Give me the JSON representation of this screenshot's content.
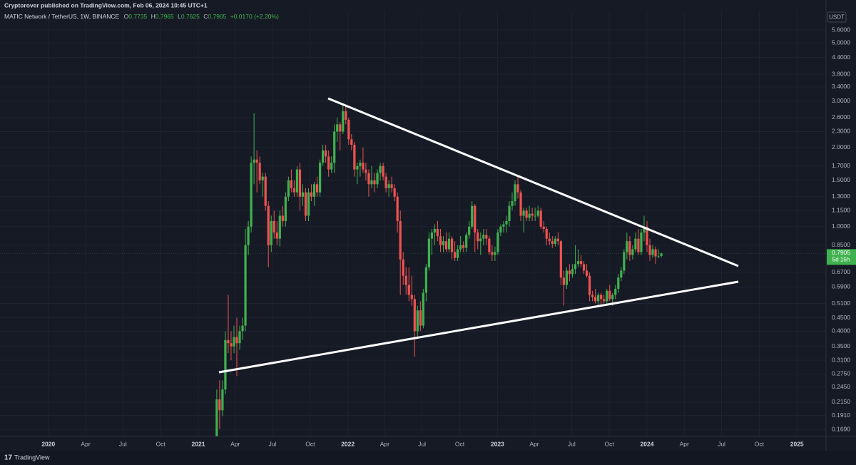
{
  "header": {
    "publisher": "Cryptorover published on TradingView.com, Feb 06, 2024 10:45 UTC+1"
  },
  "chart_data": {
    "type": "candlestick",
    "symbol": "MATIC Network / TetherUS, 1W, BINANCE",
    "ohlc_labels": [
      "O",
      "H",
      "L",
      "C"
    ],
    "change": "+0.0170 (+2.20%)",
    "currency": "USDT",
    "countdown": "5d 15h",
    "up_color": "#3fb24f",
    "down_color": "#ef5350",
    "log_scale": true,
    "grid": true,
    "xlim": [
      "2019-09-05",
      "2025-03-13"
    ],
    "ylim": [
      0.159,
      6.51
    ],
    "yticks": [
      {
        "value": 5.6,
        "label": "5.6000"
      },
      {
        "value": 5.0,
        "label": "5.0000"
      },
      {
        "value": 4.4,
        "label": "4.4000"
      },
      {
        "value": 3.8,
        "label": "3.8000"
      },
      {
        "value": 3.4,
        "label": "3.4000"
      },
      {
        "value": 3.0,
        "label": "3.0000"
      },
      {
        "value": 2.6,
        "label": "2.6000"
      },
      {
        "value": 2.3,
        "label": "2.3000"
      },
      {
        "value": 2.0,
        "label": "2.0000"
      },
      {
        "value": 1.7,
        "label": "1.7000"
      },
      {
        "value": 1.5,
        "label": "1.5000"
      },
      {
        "value": 1.3,
        "label": "1.3000"
      },
      {
        "value": 1.15,
        "label": "1.1500"
      },
      {
        "value": 1.0,
        "label": "1.0000"
      },
      {
        "value": 0.85,
        "label": "0.8500"
      },
      {
        "value": 0.67,
        "label": "0.6700"
      },
      {
        "value": 0.59,
        "label": "0.5900"
      },
      {
        "value": 0.51,
        "label": "0.5100"
      },
      {
        "value": 0.45,
        "label": "0.4500"
      },
      {
        "value": 0.4,
        "label": "0.4000"
      },
      {
        "value": 0.35,
        "label": "0.3500"
      },
      {
        "value": 0.31,
        "label": "0.3100"
      },
      {
        "value": 0.275,
        "label": "0.2750"
      },
      {
        "value": 0.245,
        "label": "0.2450"
      },
      {
        "value": 0.215,
        "label": "0.2150"
      },
      {
        "value": 0.191,
        "label": "0.1910"
      },
      {
        "value": 0.169,
        "label": "0.1690"
      }
    ],
    "xticks": [
      {
        "value": "2020-01",
        "label": "2020"
      },
      {
        "value": "2020-04",
        "label": "Apr"
      },
      {
        "value": "2020-07",
        "label": "Jul"
      },
      {
        "value": "2020-10",
        "label": "Oct"
      },
      {
        "value": "2021-01",
        "label": "2021"
      },
      {
        "value": "2021-04",
        "label": "Apr"
      },
      {
        "value": "2021-07",
        "label": "Jul"
      },
      {
        "value": "2021-10",
        "label": "Oct"
      },
      {
        "value": "2022-01",
        "label": "2022"
      },
      {
        "value": "2022-04",
        "label": "Apr"
      },
      {
        "value": "2022-07",
        "label": "Jul"
      },
      {
        "value": "2022-10",
        "label": "Oct"
      },
      {
        "value": "2023-01",
        "label": "2023"
      },
      {
        "value": "2023-04",
        "label": "Apr"
      },
      {
        "value": "2023-07",
        "label": "Jul"
      },
      {
        "value": "2023-10",
        "label": "Oct"
      },
      {
        "value": "2024-01",
        "label": "2024"
      },
      {
        "value": "2024-04",
        "label": "Apr"
      },
      {
        "value": "2024-07",
        "label": "Jul"
      },
      {
        "value": "2024-10",
        "label": "Oct"
      },
      {
        "value": "2025-01",
        "label": "2025"
      }
    ],
    "x": [
      "2021-02-15",
      "2021-02-22",
      "2021-03-01",
      "2021-03-08",
      "2021-03-15",
      "2021-03-22",
      "2021-03-29",
      "2021-04-05",
      "2021-04-12",
      "2021-04-19",
      "2021-04-26",
      "2021-05-03",
      "2021-05-10",
      "2021-05-17",
      "2021-05-24",
      "2021-05-31",
      "2021-06-07",
      "2021-06-14",
      "2021-06-21",
      "2021-06-28",
      "2021-07-05",
      "2021-07-12",
      "2021-07-19",
      "2021-07-26",
      "2021-08-02",
      "2021-08-09",
      "2021-08-16",
      "2021-08-23",
      "2021-08-30",
      "2021-09-06",
      "2021-09-13",
      "2021-09-20",
      "2021-09-27",
      "2021-10-04",
      "2021-10-11",
      "2021-10-18",
      "2021-10-25",
      "2021-11-01",
      "2021-11-08",
      "2021-11-15",
      "2021-11-22",
      "2021-11-29",
      "2021-12-06",
      "2021-12-13",
      "2021-12-20",
      "2021-12-27",
      "2022-01-03",
      "2022-01-10",
      "2022-01-17",
      "2022-01-24",
      "2022-01-31",
      "2022-02-07",
      "2022-02-14",
      "2022-02-21",
      "2022-02-28",
      "2022-03-07",
      "2022-03-14",
      "2022-03-21",
      "2022-03-28",
      "2022-04-04",
      "2022-04-11",
      "2022-04-18",
      "2022-04-25",
      "2022-05-02",
      "2022-05-09",
      "2022-05-16",
      "2022-05-23",
      "2022-05-30",
      "2022-06-06",
      "2022-06-13",
      "2022-06-20",
      "2022-06-27",
      "2022-07-04",
      "2022-07-11",
      "2022-07-18",
      "2022-07-25",
      "2022-08-01",
      "2022-08-08",
      "2022-08-15",
      "2022-08-22",
      "2022-08-29",
      "2022-09-05",
      "2022-09-12",
      "2022-09-19",
      "2022-09-26",
      "2022-10-03",
      "2022-10-10",
      "2022-10-17",
      "2022-10-24",
      "2022-10-31",
      "2022-11-07",
      "2022-11-14",
      "2022-11-21",
      "2022-11-28",
      "2022-12-05",
      "2022-12-12",
      "2022-12-19",
      "2022-12-26",
      "2023-01-02",
      "2023-01-09",
      "2023-01-16",
      "2023-01-23",
      "2023-01-30",
      "2023-02-06",
      "2023-02-13",
      "2023-02-20",
      "2023-02-27",
      "2023-03-06",
      "2023-03-13",
      "2023-03-20",
      "2023-03-27",
      "2023-04-03",
      "2023-04-10",
      "2023-04-17",
      "2023-04-24",
      "2023-05-01",
      "2023-05-08",
      "2023-05-15",
      "2023-05-22",
      "2023-05-29",
      "2023-06-05",
      "2023-06-12",
      "2023-06-19",
      "2023-06-26",
      "2023-07-03",
      "2023-07-10",
      "2023-07-17",
      "2023-07-24",
      "2023-07-31",
      "2023-08-07",
      "2023-08-14",
      "2023-08-21",
      "2023-08-28",
      "2023-09-04",
      "2023-09-11",
      "2023-09-18",
      "2023-09-25",
      "2023-10-02",
      "2023-10-09",
      "2023-10-16",
      "2023-10-23",
      "2023-10-30",
      "2023-11-06",
      "2023-11-13",
      "2023-11-20",
      "2023-11-27",
      "2023-12-04",
      "2023-12-11",
      "2023-12-18",
      "2023-12-25",
      "2024-01-01",
      "2024-01-08",
      "2024-01-15",
      "2024-01-22",
      "2024-01-29",
      "2024-02-05"
    ],
    "ohlc": [
      [
        0.14,
        0.24,
        0.13,
        0.22
      ],
      [
        0.22,
        0.26,
        0.17,
        0.2
      ],
      [
        0.2,
        0.26,
        0.19,
        0.24
      ],
      [
        0.24,
        0.4,
        0.23,
        0.37
      ],
      [
        0.37,
        0.55,
        0.33,
        0.36
      ],
      [
        0.36,
        0.4,
        0.31,
        0.35
      ],
      [
        0.35,
        0.42,
        0.33,
        0.38
      ],
      [
        0.38,
        0.45,
        0.27,
        0.36
      ],
      [
        0.36,
        0.42,
        0.34,
        0.4
      ],
      [
        0.4,
        0.45,
        0.37,
        0.42
      ],
      [
        0.42,
        0.98,
        0.4,
        0.85
      ],
      [
        0.85,
        1.05,
        0.78,
        1.0
      ],
      [
        1.0,
        1.85,
        0.95,
        1.75
      ],
      [
        1.75,
        2.7,
        1.45,
        1.8
      ],
      [
        1.8,
        1.95,
        1.35,
        1.75
      ],
      [
        1.75,
        1.85,
        1.45,
        1.5
      ],
      [
        1.5,
        1.6,
        1.3,
        1.55
      ],
      [
        1.55,
        1.6,
        1.15,
        1.2
      ],
      [
        1.2,
        1.25,
        0.7,
        0.85
      ],
      [
        0.85,
        1.1,
        0.8,
        1.05
      ],
      [
        1.05,
        1.15,
        0.9,
        0.95
      ],
      [
        0.95,
        1.05,
        0.85,
        0.9
      ],
      [
        0.9,
        1.15,
        0.84,
        1.1
      ],
      [
        1.1,
        1.2,
        1.0,
        1.05
      ],
      [
        1.05,
        1.35,
        1.0,
        1.3
      ],
      [
        1.3,
        1.55,
        1.25,
        1.5
      ],
      [
        1.5,
        1.65,
        1.35,
        1.4
      ],
      [
        1.4,
        1.5,
        1.3,
        1.35
      ],
      [
        1.35,
        1.7,
        1.3,
        1.65
      ],
      [
        1.65,
        1.75,
        1.15,
        1.3
      ],
      [
        1.3,
        1.45,
        1.2,
        1.35
      ],
      [
        1.35,
        1.4,
        1.05,
        1.1
      ],
      [
        1.1,
        1.4,
        1.05,
        1.35
      ],
      [
        1.35,
        1.45,
        1.25,
        1.3
      ],
      [
        1.3,
        1.48,
        1.2,
        1.45
      ],
      [
        1.45,
        1.55,
        1.3,
        1.35
      ],
      [
        1.35,
        1.8,
        1.3,
        1.75
      ],
      [
        1.75,
        2.05,
        1.7,
        1.95
      ],
      [
        1.95,
        2.05,
        1.75,
        1.85
      ],
      [
        1.85,
        1.95,
        1.55,
        1.65
      ],
      [
        1.65,
        1.85,
        1.6,
        1.75
      ],
      [
        1.75,
        2.45,
        1.6,
        2.3
      ],
      [
        2.3,
        2.6,
        2.1,
        2.45
      ],
      [
        2.45,
        2.5,
        1.95,
        2.3
      ],
      [
        2.3,
        2.9,
        2.25,
        2.75
      ],
      [
        2.75,
        2.92,
        2.45,
        2.55
      ],
      [
        2.55,
        2.6,
        2.05,
        2.15
      ],
      [
        2.15,
        2.25,
        1.95,
        2.05
      ],
      [
        2.05,
        2.1,
        1.55,
        1.65
      ],
      [
        1.65,
        1.75,
        1.45,
        1.7
      ],
      [
        1.7,
        1.8,
        1.55,
        1.75
      ],
      [
        1.75,
        2.0,
        1.6,
        1.65
      ],
      [
        1.65,
        1.75,
        1.5,
        1.6
      ],
      [
        1.6,
        1.65,
        1.3,
        1.45
      ],
      [
        1.45,
        1.7,
        1.4,
        1.5
      ],
      [
        1.5,
        1.6,
        1.35,
        1.45
      ],
      [
        1.45,
        1.65,
        1.4,
        1.6
      ],
      [
        1.6,
        1.75,
        1.5,
        1.7
      ],
      [
        1.7,
        1.75,
        1.5,
        1.55
      ],
      [
        1.55,
        1.6,
        1.35,
        1.4
      ],
      [
        1.4,
        1.5,
        1.3,
        1.45
      ],
      [
        1.45,
        1.55,
        1.35,
        1.4
      ],
      [
        1.4,
        1.45,
        1.25,
        1.3
      ],
      [
        1.3,
        1.35,
        0.95,
        1.05
      ],
      [
        1.05,
        1.15,
        0.55,
        0.75
      ],
      [
        0.75,
        0.8,
        0.6,
        0.65
      ],
      [
        0.65,
        0.7,
        0.55,
        0.6
      ],
      [
        0.6,
        0.7,
        0.52,
        0.55
      ],
      [
        0.55,
        0.65,
        0.5,
        0.53
      ],
      [
        0.53,
        0.55,
        0.32,
        0.4
      ],
      [
        0.4,
        0.5,
        0.38,
        0.48
      ],
      [
        0.48,
        0.52,
        0.4,
        0.42
      ],
      [
        0.42,
        0.58,
        0.41,
        0.56
      ],
      [
        0.56,
        0.72,
        0.52,
        0.7
      ],
      [
        0.7,
        0.95,
        0.68,
        0.9
      ],
      [
        0.9,
        0.98,
        0.78,
        0.95
      ],
      [
        0.95,
        1.02,
        0.85,
        0.98
      ],
      [
        0.98,
        1.05,
        0.88,
        0.92
      ],
      [
        0.92,
        0.98,
        0.8,
        0.85
      ],
      [
        0.85,
        0.92,
        0.8,
        0.88
      ],
      [
        0.88,
        0.95,
        0.8,
        0.82
      ],
      [
        0.82,
        0.95,
        0.8,
        0.9
      ],
      [
        0.9,
        0.92,
        0.75,
        0.8
      ],
      [
        0.8,
        0.88,
        0.74,
        0.76
      ],
      [
        0.76,
        0.85,
        0.74,
        0.82
      ],
      [
        0.82,
        0.92,
        0.8,
        0.85
      ],
      [
        0.85,
        0.88,
        0.8,
        0.83
      ],
      [
        0.83,
        0.95,
        0.8,
        0.93
      ],
      [
        0.93,
        1.05,
        0.9,
        1.0
      ],
      [
        1.0,
        1.25,
        0.98,
        1.2
      ],
      [
        1.2,
        1.22,
        0.8,
        0.95
      ],
      [
        0.95,
        0.98,
        0.82,
        0.88
      ],
      [
        0.88,
        0.95,
        0.78,
        0.9
      ],
      [
        0.9,
        0.98,
        0.85,
        0.93
      ],
      [
        0.93,
        0.98,
        0.85,
        0.9
      ],
      [
        0.9,
        0.92,
        0.78,
        0.8
      ],
      [
        0.8,
        0.85,
        0.74,
        0.78
      ],
      [
        0.78,
        0.84,
        0.74,
        0.8
      ],
      [
        0.8,
        0.98,
        0.78,
        0.95
      ],
      [
        0.95,
        1.02,
        0.92,
        1.0
      ],
      [
        1.0,
        1.05,
        0.95,
        1.02
      ],
      [
        1.02,
        1.1,
        0.95,
        1.05
      ],
      [
        1.05,
        1.25,
        1.0,
        1.2
      ],
      [
        1.2,
        1.35,
        1.15,
        1.25
      ],
      [
        1.25,
        1.5,
        1.2,
        1.45
      ],
      [
        1.45,
        1.57,
        1.28,
        1.35
      ],
      [
        1.35,
        1.38,
        1.05,
        1.1
      ],
      [
        1.1,
        1.18,
        0.95,
        1.15
      ],
      [
        1.15,
        1.18,
        1.05,
        1.08
      ],
      [
        1.08,
        1.2,
        1.05,
        1.12
      ],
      [
        1.12,
        1.18,
        1.05,
        1.1
      ],
      [
        1.1,
        1.18,
        1.05,
        1.1
      ],
      [
        1.1,
        1.2,
        1.08,
        1.15
      ],
      [
        1.15,
        1.18,
        0.98,
        1.0
      ],
      [
        1.0,
        1.05,
        0.95,
        0.98
      ],
      [
        0.98,
        1.0,
        0.85,
        0.9
      ],
      [
        0.9,
        0.95,
        0.85,
        0.88
      ],
      [
        0.88,
        0.92,
        0.83,
        0.86
      ],
      [
        0.86,
        0.92,
        0.84,
        0.9
      ],
      [
        0.9,
        0.95,
        0.85,
        0.88
      ],
      [
        0.88,
        0.89,
        0.6,
        0.64
      ],
      [
        0.64,
        0.68,
        0.5,
        0.6
      ],
      [
        0.6,
        0.7,
        0.58,
        0.68
      ],
      [
        0.68,
        0.72,
        0.62,
        0.66
      ],
      [
        0.66,
        0.72,
        0.64,
        0.69
      ],
      [
        0.69,
        0.85,
        0.66,
        0.72
      ],
      [
        0.72,
        0.82,
        0.7,
        0.74
      ],
      [
        0.74,
        0.78,
        0.7,
        0.72
      ],
      [
        0.72,
        0.74,
        0.66,
        0.68
      ],
      [
        0.68,
        0.72,
        0.64,
        0.65
      ],
      [
        0.65,
        0.67,
        0.52,
        0.55
      ],
      [
        0.55,
        0.57,
        0.52,
        0.54
      ],
      [
        0.54,
        0.58,
        0.51,
        0.52
      ],
      [
        0.52,
        0.56,
        0.5,
        0.55
      ],
      [
        0.55,
        0.56,
        0.5,
        0.53
      ],
      [
        0.53,
        0.55,
        0.51,
        0.52
      ],
      [
        0.52,
        0.58,
        0.51,
        0.57
      ],
      [
        0.57,
        0.6,
        0.52,
        0.53
      ],
      [
        0.53,
        0.56,
        0.5,
        0.55
      ],
      [
        0.55,
        0.6,
        0.53,
        0.58
      ],
      [
        0.58,
        0.66,
        0.56,
        0.64
      ],
      [
        0.64,
        0.7,
        0.62,
        0.68
      ],
      [
        0.68,
        0.82,
        0.66,
        0.8
      ],
      [
        0.8,
        0.95,
        0.75,
        0.88
      ],
      [
        0.88,
        0.92,
        0.74,
        0.78
      ],
      [
        0.78,
        0.85,
        0.75,
        0.82
      ],
      [
        0.82,
        0.95,
        0.8,
        0.9
      ],
      [
        0.9,
        0.98,
        0.78,
        0.8
      ],
      [
        0.8,
        0.98,
        0.78,
        0.95
      ],
      [
        0.95,
        1.1,
        0.88,
        1.0
      ],
      [
        1.0,
        1.05,
        0.8,
        0.85
      ],
      [
        0.85,
        0.9,
        0.74,
        0.78
      ],
      [
        0.78,
        0.85,
        0.76,
        0.82
      ],
      [
        0.82,
        0.84,
        0.72,
        0.77
      ],
      [
        0.77,
        0.82,
        0.76,
        0.77
      ],
      [
        0.7735,
        0.7965,
        0.7625,
        0.7905
      ]
    ]
  },
  "footer": {
    "brand": "TradingView"
  }
}
